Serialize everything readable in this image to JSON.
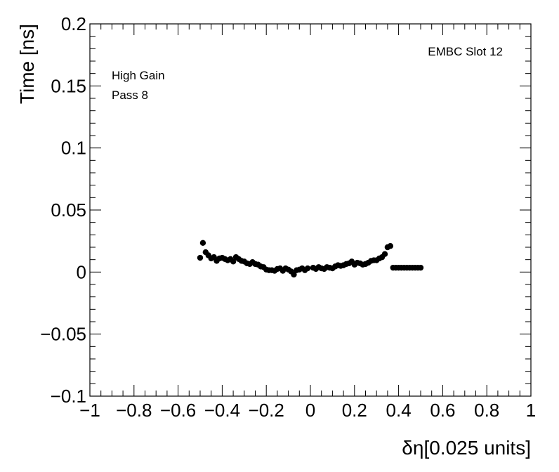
{
  "chart_data": {
    "type": "scatter",
    "xlabel": "δη[0.025 units]",
    "ylabel": "Time [ns]",
    "xlim": [
      -1,
      1
    ],
    "ylim": [
      -0.1,
      0.2
    ],
    "x_ticks": [
      -1,
      -0.8,
      -0.6,
      -0.4,
      -0.2,
      0,
      0.2,
      0.4,
      0.6,
      0.8,
      1
    ],
    "x_tick_labels": [
      "−1",
      "−0.8",
      "−0.6",
      "−0.4",
      "−0.2",
      "0",
      "0.2",
      "0.4",
      "0.6",
      "0.8",
      "1"
    ],
    "y_ticks": [
      -0.1,
      -0.05,
      0,
      0.05,
      0.1,
      0.15,
      0.2
    ],
    "y_tick_labels": [
      "−0.1",
      "−0.05",
      "0",
      "0.05",
      "0.1",
      "0.15",
      "0.2"
    ],
    "annotations": {
      "top_right": "EMBC Slot 12",
      "line1": "High Gain",
      "line2": "Pass 8"
    },
    "marker_color": "#000000",
    "series": [
      {
        "x": [
          -0.5,
          -0.4875,
          -0.475,
          -0.4625,
          -0.45,
          -0.4375,
          -0.425,
          -0.4125,
          -0.4,
          -0.3875,
          -0.375,
          -0.3625,
          -0.35,
          -0.3375,
          -0.325,
          -0.3125,
          -0.3,
          -0.2875,
          -0.275,
          -0.2625,
          -0.25,
          -0.2375,
          -0.225,
          -0.2125,
          -0.2,
          -0.1875,
          -0.175,
          -0.1625,
          -0.15,
          -0.1375,
          -0.125,
          -0.1125,
          -0.1,
          -0.0875,
          -0.075,
          -0.0625,
          -0.05,
          -0.0375,
          -0.025,
          -0.0125,
          0.0125,
          0.025,
          0.0375,
          0.05,
          0.0625,
          0.075,
          0.0875,
          0.1,
          0.1125,
          0.125,
          0.1375,
          0.15,
          0.1625,
          0.175,
          0.1875,
          0.2,
          0.2125,
          0.225,
          0.2375,
          0.25,
          0.2625,
          0.275,
          0.2875,
          0.3,
          0.3125,
          0.325,
          0.3375,
          0.35,
          0.3625,
          0.375,
          0.3875,
          0.4,
          0.4125,
          0.425,
          0.4375,
          0.45,
          0.4625,
          0.475,
          0.4875,
          0.5
        ],
        "y": [
          0.0115,
          0.0235,
          0.016,
          0.0135,
          0.011,
          0.012,
          0.009,
          0.011,
          0.0115,
          0.0105,
          0.0095,
          0.0105,
          0.0085,
          0.012,
          0.0105,
          0.009,
          0.0085,
          0.007,
          0.0065,
          0.008,
          0.0065,
          0.006,
          0.0045,
          0.004,
          0.002,
          0.0015,
          0.0015,
          0.001,
          0.0025,
          0.003,
          0.001,
          0.003,
          0.002,
          0.0005,
          -0.002,
          0.0015,
          0.002,
          0.003,
          0.0015,
          0.003,
          0.0035,
          0.0025,
          0.004,
          0.003,
          0.0025,
          0.004,
          0.0035,
          0.003,
          0.0045,
          0.0055,
          0.005,
          0.0055,
          0.0065,
          0.007,
          0.0085,
          0.006,
          0.0075,
          0.007,
          0.006,
          0.0065,
          0.0075,
          0.009,
          0.0095,
          0.0095,
          0.011,
          0.012,
          0.0145,
          0.02,
          0.021,
          0.0035,
          0.0035,
          0.0035,
          0.0035,
          0.0035,
          0.0035,
          0.0035,
          0.0035,
          0.0035,
          0.0035,
          0.0035
        ]
      }
    ]
  }
}
